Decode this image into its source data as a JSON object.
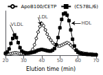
{
  "chart_data": {
    "type": "line",
    "xlabel": "Elution time (min)",
    "x": [
      20,
      21,
      22,
      23,
      24,
      25,
      26,
      27,
      28,
      29,
      30,
      31,
      32,
      33,
      34,
      35,
      36,
      37,
      38,
      39,
      40,
      41,
      42,
      43,
      44,
      45,
      46,
      47,
      48,
      49,
      50,
      51,
      52,
      53,
      54,
      55,
      56,
      57,
      58,
      59,
      60,
      61,
      62,
      63,
      64,
      65,
      66,
      67,
      68,
      69,
      70
    ],
    "series": [
      {
        "name": "ApoB100/CETP",
        "color": "black",
        "marker": "open-circle",
        "values": [
          0.03,
          0.03,
          0.03,
          0.04,
          0.05,
          0.06,
          0.06,
          0.05,
          0.04,
          0.04,
          0.04,
          0.04,
          0.05,
          0.06,
          0.08,
          0.14,
          0.25,
          0.4,
          0.55,
          0.68,
          0.75,
          0.7,
          0.6,
          0.5,
          0.42,
          0.36,
          0.3,
          0.26,
          0.24,
          0.22,
          0.22,
          0.24,
          0.26,
          0.28,
          0.3,
          0.28,
          0.24,
          0.2,
          0.16,
          0.12,
          0.09,
          0.07,
          0.06,
          0.05,
          0.04,
          0.04,
          0.03,
          0.03,
          0.03,
          0.02,
          0.02
        ]
      },
      {
        "name": "(C57BL/6)",
        "color": "black",
        "marker": "square",
        "values": [
          0.05,
          0.08,
          0.15,
          0.28,
          0.4,
          0.48,
          0.42,
          0.3,
          0.18,
          0.1,
          0.07,
          0.06,
          0.05,
          0.05,
          0.06,
          0.07,
          0.08,
          0.1,
          0.12,
          0.13,
          0.14,
          0.13,
          0.12,
          0.11,
          0.1,
          0.1,
          0.12,
          0.16,
          0.25,
          0.42,
          0.65,
          0.85,
          0.98,
          1.0,
          0.95,
          0.82,
          0.6,
          0.38,
          0.22,
          0.12,
          0.07,
          0.05,
          0.04,
          0.03,
          0.03,
          0.02,
          0.02,
          0.02,
          0.01,
          0.01,
          0.01
        ]
      }
    ],
    "xlim": [
      20,
      70
    ],
    "xticks": [
      20,
      30,
      40,
      50,
      60,
      70
    ],
    "ylim": [
      0,
      1.05
    ],
    "yticks": [],
    "tick_labels": "x",
    "grid": false,
    "legend": "upper right",
    "annotations": [
      {
        "text": "VLDL",
        "xy": [
          25.5,
          0.44
        ],
        "xytext": [
          22.5,
          0.72
        ]
      },
      {
        "text": "LDL",
        "xy": [
          39.5,
          0.72
        ],
        "xytext": [
          38.0,
          0.9
        ]
      },
      {
        "text": "HDL",
        "xy": [
          56.5,
          0.76
        ],
        "xytext": [
          61.5,
          0.76
        ]
      }
    ]
  }
}
